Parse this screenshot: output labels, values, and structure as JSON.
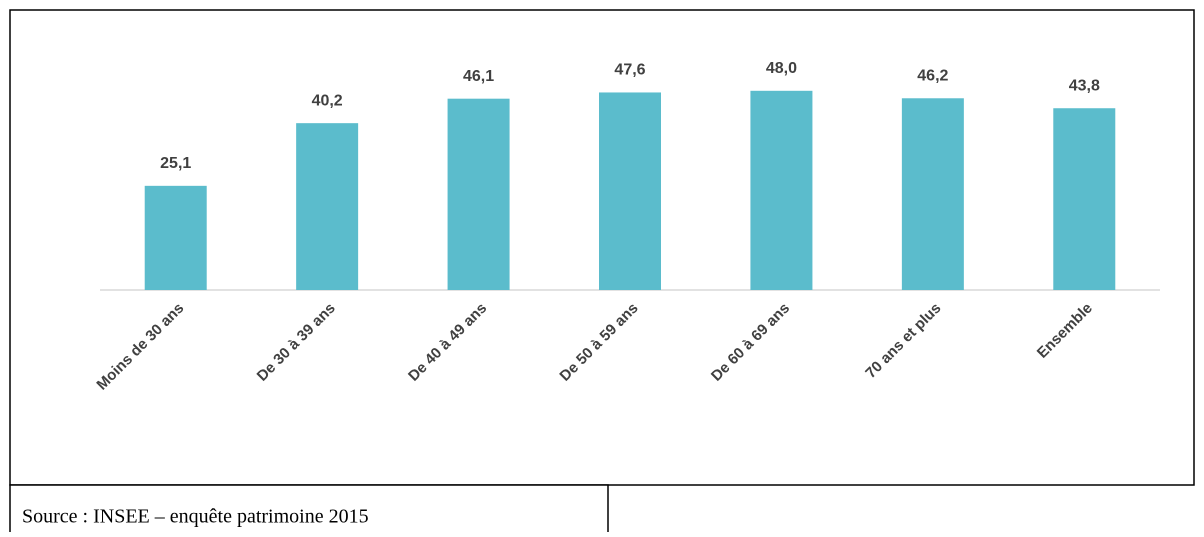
{
  "chart_data": {
    "type": "bar",
    "categories": [
      "Moins de 30 ans",
      "De 30 à 39 ans",
      "De 40 à 49 ans",
      "De 50 à 59 ans",
      "De 60 à 69 ans",
      "70 ans et plus",
      "Ensemble"
    ],
    "values": [
      25.1,
      40.2,
      46.1,
      47.6,
      48.0,
      46.2,
      43.8
    ],
    "value_labels": [
      "25,1",
      "40,2",
      "46,1",
      "47,6",
      "48,0",
      "46,2",
      "43,8"
    ],
    "color": "#5bbccc",
    "ylim": [
      0,
      60
    ],
    "source": "Source : INSEE – enquête patrimoine 2015"
  }
}
